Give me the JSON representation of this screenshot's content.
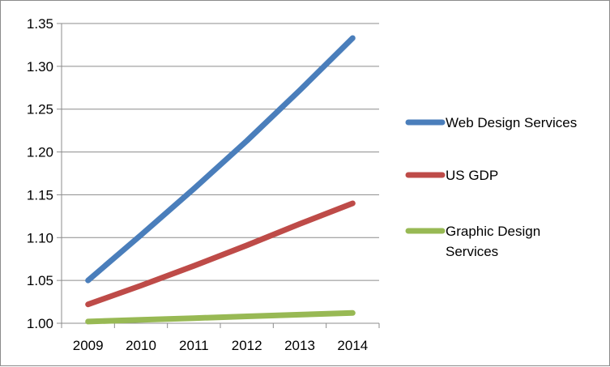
{
  "chart_data": {
    "type": "line",
    "categories": [
      "2009",
      "2010",
      "2011",
      "2012",
      "2013",
      "2014"
    ],
    "y_ticks": [
      "1.00",
      "1.05",
      "1.10",
      "1.15",
      "1.20",
      "1.25",
      "1.30",
      "1.35"
    ],
    "ylim": [
      1.0,
      1.35
    ],
    "grid": true,
    "legend_position": "right",
    "series": [
      {
        "name": "Web Design Services",
        "color": "#4a7ebb",
        "values": [
          1.05,
          1.103,
          1.157,
          1.213,
          1.272,
          1.333
        ]
      },
      {
        "name": "US GDP",
        "color": "#be4b48",
        "values": [
          1.022,
          1.044,
          1.067,
          1.091,
          1.116,
          1.14
        ]
      },
      {
        "name": "Graphic Design Services",
        "color": "#98b954",
        "values": [
          1.002,
          1.004,
          1.006,
          1.008,
          1.01,
          1.012
        ]
      }
    ],
    "legend_lines": {
      "Web Design Services": [
        "Web Design Services"
      ],
      "US GDP": [
        "US GDP"
      ],
      "Graphic Design Services": [
        "Graphic Design",
        "Services"
      ]
    }
  }
}
